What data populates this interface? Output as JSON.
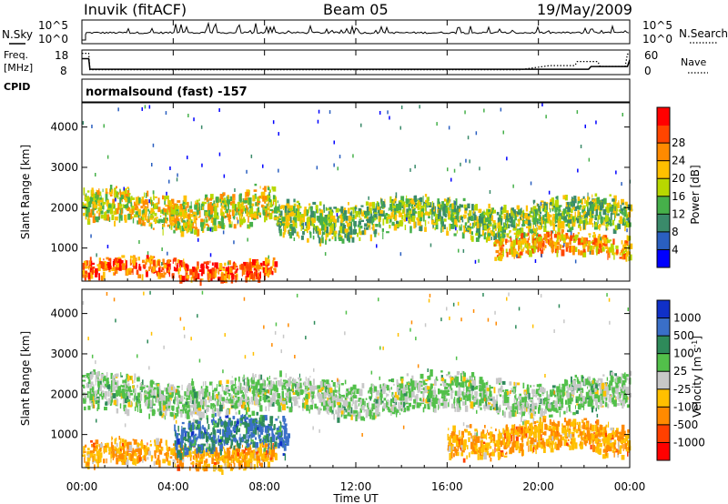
{
  "header": {
    "station": "Inuvik (fitACF)",
    "beam": "Beam 05",
    "date": "19/May/2009"
  },
  "left_labels": {
    "nsky": "N.Sky",
    "freq_line1": "Freq.",
    "freq_line2": "[MHz]",
    "cpid": "CPID"
  },
  "right_labels": {
    "nsearch": "N.Search",
    "nave": "Nave"
  },
  "program": "normalsound (fast) -157",
  "chart_data": [
    {
      "type": "line",
      "panel": "noise",
      "ylabel_left": "N.Sky",
      "ylabel_right": "N.Search",
      "left_ticks": [
        "10^5",
        "10^0"
      ],
      "right_ticks": [
        "10^5",
        "10^0"
      ],
      "x": [
        "00:00",
        "04:00",
        "08:00",
        "12:00",
        "16:00",
        "20:00",
        "00:00"
      ]
    },
    {
      "type": "line",
      "panel": "frequency",
      "ylabel_left": "Freq. [MHz]",
      "ylabel_right": "Nave",
      "left_ticks": [
        "18",
        "8"
      ],
      "right_ticks": [
        "60",
        "0"
      ],
      "ylim_left": [
        8,
        18
      ],
      "ylim_right": [
        0,
        60
      ],
      "series": [
        {
          "name": "Freq.",
          "x_hours": [
            0,
            0.3,
            0.35,
            22.2,
            22.3,
            23.9,
            24
          ],
          "values": [
            14.5,
            14.5,
            10.2,
            10.2,
            11.3,
            11.3,
            14
          ]
        },
        {
          "name": "Nave",
          "x_hours": [
            0,
            0.3,
            0.35,
            19.2,
            20.5,
            21.6,
            21.7,
            22.6,
            22.7,
            23.8,
            23.9,
            24
          ],
          "values": [
            52,
            52,
            12,
            12,
            22,
            22,
            32,
            32,
            20,
            20,
            50,
            50
          ]
        }
      ]
    },
    {
      "type": "heatmap",
      "panel": "power",
      "ylabel": "Slant Range [km]",
      "yticks": [
        1000,
        2000,
        3000,
        4000
      ],
      "ylim": [
        180,
        4600
      ],
      "colorbar_label": "Power [dB]",
      "colorbar_ticks": [
        4,
        8,
        12,
        16,
        20,
        24,
        28
      ],
      "colorbar_colors": [
        "#0000ff",
        "#2a5fc0",
        "#3a8a6a",
        "#46b04a",
        "#b8d800",
        "#ffc000",
        "#ff8a00",
        "#ff4500",
        "#ff0000"
      ],
      "features": [
        {
          "range_km": [
            250,
            800
          ],
          "hours": [
            0,
            8.5
          ],
          "dB": 28
        },
        {
          "range_km": [
            1500,
            2500
          ],
          "hours": [
            0,
            8.5
          ],
          "dB": 18
        },
        {
          "range_km": [
            1300,
            2300
          ],
          "hours": [
            8.5,
            24
          ],
          "dB": 14
        },
        {
          "range_km": [
            800,
            1400
          ],
          "hours": [
            18,
            24
          ],
          "dB": 22
        }
      ]
    },
    {
      "type": "heatmap",
      "panel": "velocity",
      "ylabel": "Slant Range [km]",
      "yticks": [
        1000,
        2000,
        3000,
        4000
      ],
      "ylim": [
        180,
        4600
      ],
      "colorbar_label": "Velocity [m s^-1]",
      "colorbar_ticks": [
        1000,
        500,
        100,
        25,
        -25,
        -100,
        -500,
        -1000
      ],
      "colorbar_colors": [
        "#1030c8",
        "#3a6fc8",
        "#2e8a5a",
        "#52c04a",
        "#c8c8c8",
        "#ffc000",
        "#ff8a00",
        "#ff4000",
        "#ff0000"
      ],
      "features": [
        {
          "range_km": [
            200,
            900
          ],
          "hours": [
            0,
            8.5
          ],
          "velocity": -150
        },
        {
          "range_km": [
            1500,
            2500
          ],
          "hours": [
            0,
            24
          ],
          "velocity": 0
        },
        {
          "range_km": [
            500,
            1500
          ],
          "hours": [
            4,
            9
          ],
          "velocity": 300
        },
        {
          "range_km": [
            500,
            1400
          ],
          "hours": [
            16,
            24
          ],
          "velocity": -300
        }
      ]
    }
  ],
  "x_axis": {
    "ticks": [
      "00:00",
      "04:00",
      "08:00",
      "12:00",
      "16:00",
      "20:00",
      "00:00"
    ],
    "label": "Time UT"
  }
}
